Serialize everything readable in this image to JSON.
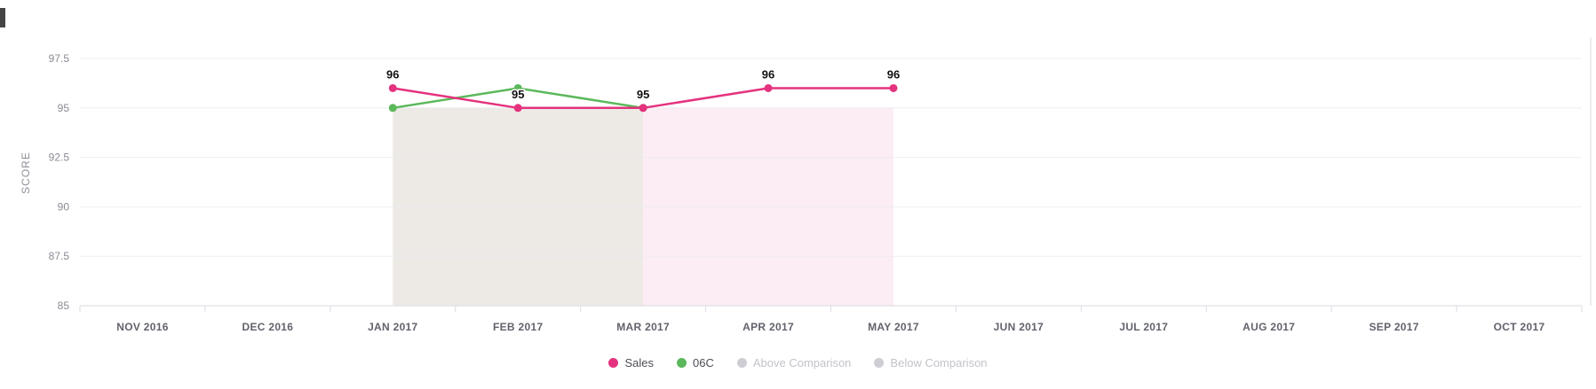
{
  "page": {
    "background": "#ffffff"
  },
  "chart_data": {
    "type": "line",
    "title": "",
    "xlabel": "",
    "ylabel": "SCORE",
    "ylim": [
      85,
      98.5
    ],
    "y_ticks": [
      85,
      87.5,
      90,
      92.5,
      95,
      97.5
    ],
    "grid": true,
    "legend_position": "bottom",
    "categories": [
      "NOV 2016",
      "DEC 2016",
      "JAN 2017",
      "FEB 2017",
      "MAR 2017",
      "APR 2017",
      "MAY 2017",
      "JUN 2017",
      "JUL 2017",
      "AUG 2017",
      "SEP 2017",
      "OCT 2017"
    ],
    "series": [
      {
        "name": "Sales",
        "color": "#e5327e",
        "values": [
          null,
          null,
          96,
          95,
          95,
          96,
          96,
          null,
          null,
          null,
          null,
          null
        ],
        "data_labels": true
      },
      {
        "name": "06C",
        "color": "#5bb85b",
        "values": [
          null,
          null,
          95,
          96,
          95,
          null,
          null,
          null,
          null,
          null,
          null,
          null
        ],
        "data_labels": false
      }
    ],
    "bands": [
      {
        "name": "Below Comparison",
        "color": "#edeae6",
        "x_from": "JAN 2017",
        "x_to": "MAR 2017",
        "y_from": 85,
        "y_to": 95
      },
      {
        "name": "Above Comparison",
        "color": "#fcedf4",
        "x_from": "MAR 2017",
        "x_to": "MAY 2017",
        "y_from": 85,
        "y_to": 95
      }
    ]
  },
  "legend": {
    "items": [
      {
        "label": "Sales",
        "color": "#e5327e",
        "muted": false
      },
      {
        "label": "06C",
        "color": "#5bb85b",
        "muted": false
      },
      {
        "label": "Above Comparison",
        "color": "#cdcdd3",
        "muted": true
      },
      {
        "label": "Below Comparison",
        "color": "#cdcdd3",
        "muted": true
      }
    ]
  },
  "colors": {
    "gridline": "#ebebf0",
    "axis_line": "#d9d9e0",
    "tick_mark": "#dcdce3",
    "month_label": "#62626c",
    "y_label": "#8a8a94",
    "axis_title": "#8f8f99",
    "data_label": "#111111"
  }
}
